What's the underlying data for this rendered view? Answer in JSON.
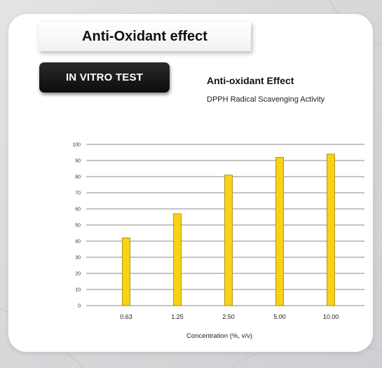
{
  "header": {
    "title": "Anti-Oxidant effect",
    "badge": "IN VITRO TEST"
  },
  "chart_data": {
    "type": "bar",
    "title": "Anti-oxidant Effect",
    "subtitle": "DPPH Radical Scavenging Activity",
    "xlabel": "Concentration (%, v/v)",
    "ylabel": "",
    "categories": [
      "0.63",
      "1.25",
      "2.50",
      "5.00",
      "10.00"
    ],
    "values": [
      42,
      57,
      81,
      92,
      94
    ],
    "ylim": [
      0,
      100
    ],
    "yticks": [
      "0",
      "10",
      "20",
      "30",
      "40",
      "50",
      "60",
      "70",
      "80",
      "90",
      "100"
    ],
    "grid": true,
    "bar_color": "#f7d215",
    "bar_outline": "#a08400"
  }
}
